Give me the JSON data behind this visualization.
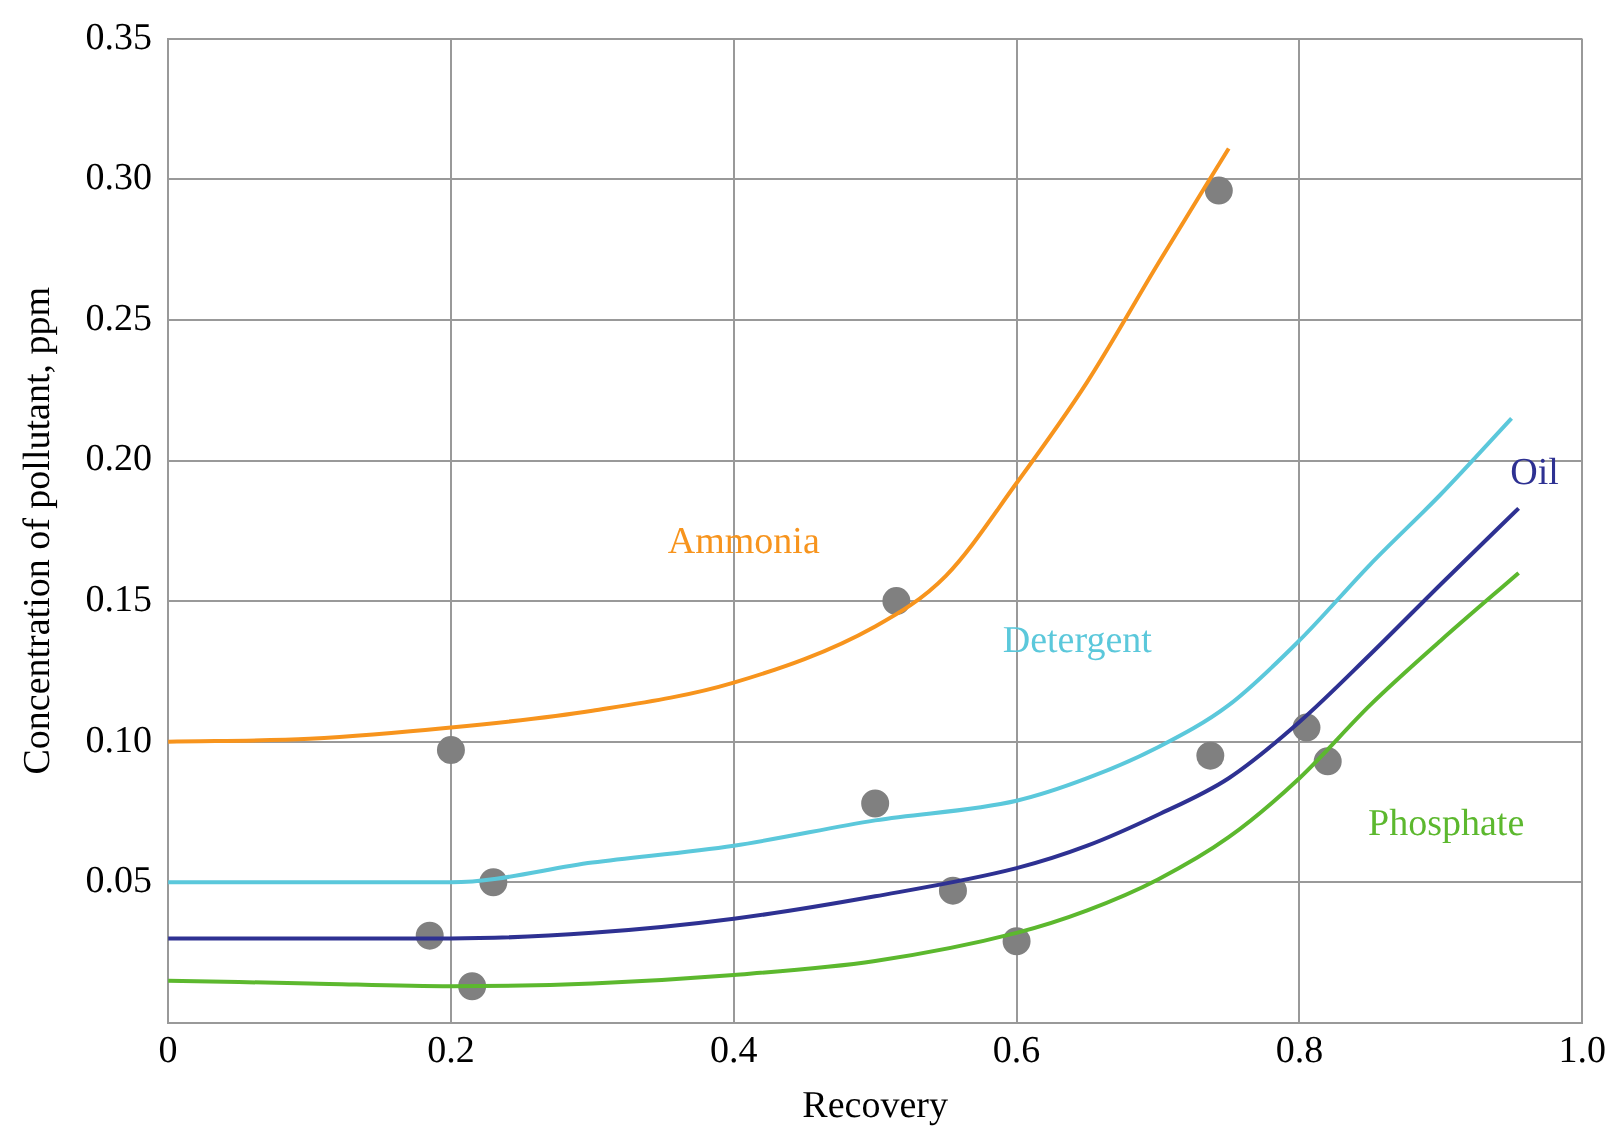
{
  "chart_data": {
    "type": "line",
    "xlabel": "Recovery",
    "ylabel": "Concentration of pollutant, ppm",
    "xlim": [
      0,
      1
    ],
    "xticks": [
      0,
      0.2,
      0.4,
      0.6,
      0.8,
      {
        "value": 1,
        "label": "1.0"
      }
    ],
    "ylim": [
      0,
      0.35
    ],
    "yticks": [
      {
        "value": 0,
        "label": null
      },
      0.05,
      {
        "value": 0.1,
        "label": "0.10"
      },
      0.15,
      {
        "value": 0.2,
        "label": "0.20"
      },
      0.25,
      {
        "value": 0.3,
        "label": "0.30"
      },
      0.35
    ],
    "grid": true,
    "legend": false,
    "marker": "none",
    "series": [
      {
        "name": "Ammonia",
        "color": "#f7941d",
        "x": [
          0,
          0.1,
          0.2,
          0.3,
          0.4,
          0.5,
          0.55,
          0.6,
          0.65,
          0.7,
          0.75
        ],
        "values": [
          0.1,
          0.101,
          0.105,
          0.111,
          0.121,
          0.141,
          0.159,
          0.192,
          0.228,
          0.27,
          0.311
        ]
      },
      {
        "name": "Detergent",
        "color": "#5bc8db",
        "x": [
          0,
          0.1,
          0.2,
          0.3,
          0.4,
          0.5,
          0.6,
          0.65,
          0.7,
          0.75,
          0.8,
          0.85,
          0.9,
          0.95
        ],
        "values": [
          0.05,
          0.05,
          0.05,
          0.057,
          0.063,
          0.072,
          0.079,
          0.087,
          0.098,
          0.113,
          0.136,
          0.163,
          0.188,
          0.215
        ]
      },
      {
        "name": "Oil",
        "color": "#2e3192",
        "x": [
          0,
          0.1,
          0.2,
          0.3,
          0.4,
          0.5,
          0.6,
          0.65,
          0.7,
          0.75,
          0.8,
          0.85,
          0.9,
          0.955
        ],
        "values": [
          0.03,
          0.03,
          0.03,
          0.032,
          0.037,
          0.045,
          0.055,
          0.063,
          0.074,
          0.087,
          0.107,
          0.131,
          0.156,
          0.183
        ]
      },
      {
        "name": "Phosphate",
        "color": "#5cb82e",
        "x": [
          0,
          0.1,
          0.2,
          0.3,
          0.4,
          0.5,
          0.6,
          0.65,
          0.7,
          0.75,
          0.8,
          0.85,
          0.9,
          0.955
        ],
        "values": [
          0.015,
          0.014,
          0.013,
          0.014,
          0.017,
          0.022,
          0.032,
          0.04,
          0.051,
          0.066,
          0.087,
          0.113,
          0.136,
          0.16
        ]
      },
      {
        "type": "scatter",
        "color": "#808080",
        "marker": "circle",
        "x": [
          0.743,
          0.515,
          0.2,
          0.5,
          0.23,
          0.185,
          0.215,
          0.555,
          0.6,
          0.737,
          0.805,
          0.82
        ],
        "values": [
          0.296,
          0.15,
          0.097,
          0.078,
          0.05,
          0.031,
          0.013,
          0.047,
          0.029,
          0.095,
          0.105,
          0.093
        ]
      }
    ]
  }
}
